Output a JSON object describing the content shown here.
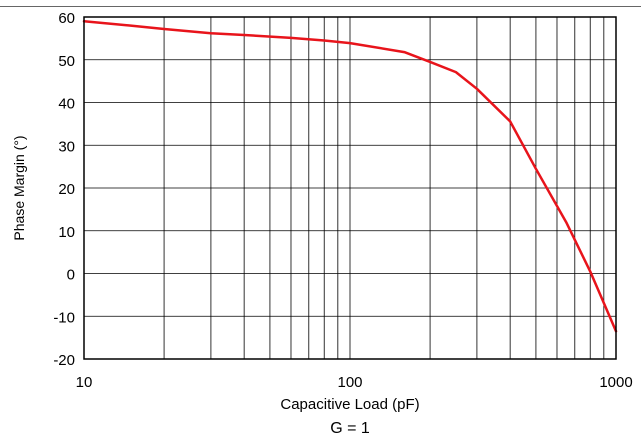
{
  "chart_data": {
    "type": "line",
    "title": "",
    "xlabel": "Capacitive Load (pF)",
    "ylabel": "Phase Margin (°)",
    "caption": "G = 1",
    "xscale": "log",
    "xlim": [
      10,
      1000
    ],
    "ylim": [
      -20,
      60
    ],
    "yticks": [
      -20,
      -10,
      0,
      10,
      20,
      30,
      40,
      50,
      60
    ],
    "xtick_labels": [
      "10",
      "100",
      "1000"
    ],
    "grid": true,
    "line_color": "#e8141b",
    "series": [
      {
        "x": [
          10,
          15,
          20,
          30,
          40,
          60,
          80,
          100,
          160,
          200,
          250,
          300,
          400,
          500,
          650,
          800,
          1000
        ],
        "y": [
          59,
          58,
          57.2,
          56.2,
          55.8,
          55.1,
          54.5,
          53.9,
          51.8,
          49.5,
          47.1,
          43.2,
          35.6,
          24.5,
          12.0,
          0.5,
          -13.5
        ]
      }
    ]
  }
}
